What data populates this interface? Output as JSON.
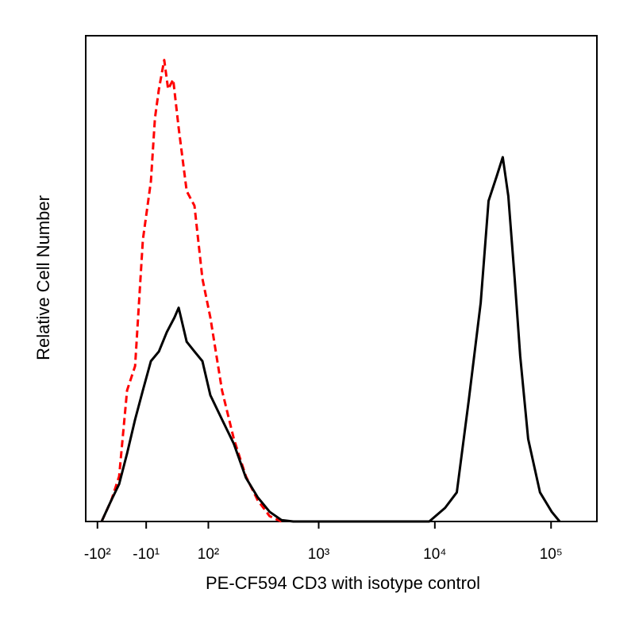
{
  "chart_data": {
    "type": "line",
    "xlabel": "PE-CF594 CD3 with isotype control",
    "ylabel": "Relative Cell Number",
    "xscale": "arcsinh",
    "xlim": [
      -132,
      248000
    ],
    "ylim": [
      0,
      100
    ],
    "xticks": [
      {
        "value": -100,
        "label": "-10²"
      },
      {
        "value": -10,
        "label": "-10¹"
      },
      {
        "value": 100,
        "label": "10²"
      },
      {
        "value": 1000,
        "label": "10³"
      },
      {
        "value": 10000,
        "label": "10⁴"
      },
      {
        "value": 100000,
        "label": "10⁵"
      }
    ],
    "series": [
      {
        "color": "#ff0000",
        "line_style": "dashed",
        "x": [
          -90,
          -69,
          -54,
          -40,
          -27,
          -15,
          -3,
          3,
          9,
          17,
          23,
          31,
          40,
          54,
          69,
          86,
          105,
          138,
          179,
          231,
          294,
          375,
          476
        ],
        "values": [
          0,
          4.4,
          9.3,
          27,
          32,
          58,
          70,
          83,
          89,
          95,
          89,
          91,
          81,
          68,
          65,
          50,
          42,
          27,
          17,
          9.3,
          4.4,
          1.1,
          0
        ]
      },
      {
        "color": "#000000",
        "line_style": "solid",
        "x": [
          -90,
          -69,
          -54,
          -40,
          -27,
          -15,
          -3,
          9,
          21,
          33,
          40,
          54,
          69,
          86,
          105,
          138,
          179,
          231,
          294,
          375,
          476,
          603,
          8960,
          12240,
          15440,
          19590,
          24820,
          28970,
          33950,
          38430,
          42910,
          48640,
          54280,
          63500,
          80260,
          101300,
          118700
        ],
        "values": [
          0,
          4.4,
          7.7,
          14,
          21,
          27,
          33,
          35,
          39,
          42,
          44,
          37,
          35,
          33,
          26,
          21,
          16,
          9,
          5,
          2,
          0.3,
          0,
          0,
          2.8,
          6,
          25,
          45,
          66,
          71,
          75,
          67,
          50,
          34,
          17,
          6,
          2,
          0
        ]
      }
    ]
  }
}
